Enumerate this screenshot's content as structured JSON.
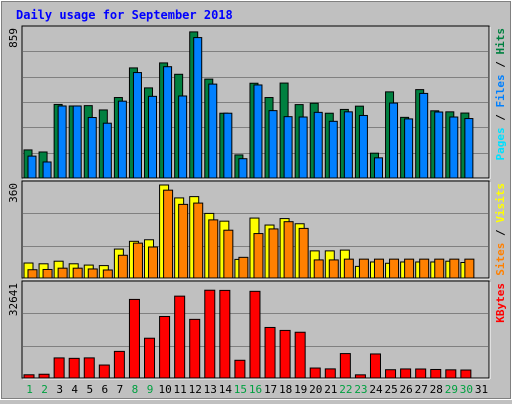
{
  "chart_data": [
    {
      "type": "bar",
      "title": "Daily usage for September 2018",
      "panel": "pages-files-hits",
      "categories": [
        "1",
        "2",
        "3",
        "4",
        "5",
        "6",
        "7",
        "8",
        "9",
        "10",
        "11",
        "12",
        "13",
        "14",
        "15",
        "16",
        "17",
        "18",
        "19",
        "20",
        "21",
        "22",
        "23",
        "24",
        "25",
        "26",
        "27",
        "28",
        "29",
        "30"
      ],
      "ytick": "859",
      "ylim": [
        0,
        859
      ],
      "side_labels": [
        "Pages",
        "Files",
        "Hits"
      ],
      "series": [
        {
          "name": "Hits",
          "color": "#008040",
          "values": [
            163,
            151,
            427,
            418,
            420,
            395,
            467,
            639,
            523,
            668,
            602,
            848,
            574,
            376,
            134,
            550,
            467,
            551,
            426,
            434,
            376,
            398,
            417,
            144,
            500,
            352,
            513,
            390,
            384,
            377
          ]
        },
        {
          "name": "Files",
          "color": "#0080ff",
          "values": [
            127,
            93,
            418,
            418,
            351,
            318,
            446,
            612,
            474,
            646,
            476,
            815,
            545,
            376,
            112,
            540,
            391,
            356,
            354,
            381,
            329,
            384,
            363,
            117,
            435,
            343,
            491,
            383,
            354,
            345
          ]
        },
        {
          "name": "Pages",
          "color": "#00e0ff",
          "values": [
            0,
            0,
            0,
            0,
            0,
            0,
            0,
            0,
            0,
            0,
            0,
            0,
            0,
            0,
            0,
            0,
            0,
            0,
            0,
            0,
            0,
            0,
            0,
            0,
            0,
            0,
            0,
            0,
            0,
            0
          ]
        }
      ]
    },
    {
      "type": "bar",
      "panel": "sites-visits",
      "categories": [
        "1",
        "2",
        "3",
        "4",
        "5",
        "6",
        "7",
        "8",
        "9",
        "10",
        "11",
        "12",
        "13",
        "14",
        "15",
        "16",
        "17",
        "18",
        "19",
        "20",
        "21",
        "22",
        "23",
        "24",
        "25",
        "26",
        "27",
        "28",
        "29",
        "30"
      ],
      "ytick": "360",
      "ylim": [
        0,
        360
      ],
      "side_labels": [
        "Sites",
        "Visits"
      ],
      "series": [
        {
          "name": "Visits",
          "color": "#ffff00",
          "values": [
            58,
            55,
            65,
            55,
            50,
            48,
            112,
            142,
            148,
            360,
            310,
            315,
            250,
            220,
            72,
            232,
            205,
            230,
            210,
            105,
            105,
            108,
            45,
            62,
            57,
            62,
            62,
            62,
            65,
            60
          ]
        },
        {
          "name": "Sites",
          "color": "#ff8000",
          "values": [
            32,
            33,
            38,
            38,
            35,
            31,
            88,
            135,
            120,
            340,
            285,
            290,
            225,
            185,
            80,
            172,
            190,
            218,
            192,
            70,
            70,
            73,
            73,
            73,
            73,
            73,
            73,
            73,
            73,
            73
          ]
        }
      ]
    },
    {
      "type": "bar",
      "panel": "kbytes",
      "categories": [
        "1",
        "2",
        "3",
        "4",
        "5",
        "6",
        "7",
        "8",
        "9",
        "10",
        "11",
        "12",
        "13",
        "14",
        "15",
        "16",
        "17",
        "18",
        "19",
        "20",
        "21",
        "22",
        "23",
        "24",
        "25",
        "26",
        "27",
        "28",
        "29",
        "30"
      ],
      "ytick": "32641",
      "ylim": [
        0,
        32641
      ],
      "side_labels": [
        "KBytes"
      ],
      "series": [
        {
          "name": "KBytes",
          "color": "#ff0000",
          "values": [
            1130,
            1320,
            7050,
            6900,
            7060,
            4550,
            9340,
            27580,
            13960,
            21590,
            28730,
            20580,
            30810,
            30750,
            6220,
            30420,
            17740,
            16700,
            16060,
            3500,
            3200,
            8570,
            1110,
            8440,
            2910,
            3180,
            3160,
            2990,
            2870,
            2800
          ]
        }
      ]
    }
  ],
  "x_axis": {
    "labels": [
      "1",
      "2",
      "3",
      "4",
      "5",
      "6",
      "7",
      "8",
      "9",
      "10",
      "11",
      "12",
      "13",
      "14",
      "15",
      "16",
      "17",
      "18",
      "19",
      "20",
      "21",
      "22",
      "23",
      "24",
      "25",
      "26",
      "27",
      "28",
      "29",
      "30",
      "31"
    ],
    "weekend_days": [
      1,
      2,
      8,
      9,
      15,
      16,
      22,
      23,
      29,
      30
    ],
    "weekend_color": "#00a040",
    "weekday_color": "#000000"
  },
  "colors": {
    "title": "#0000ff",
    "background": "#c0c0c0",
    "grid": "#808080"
  }
}
